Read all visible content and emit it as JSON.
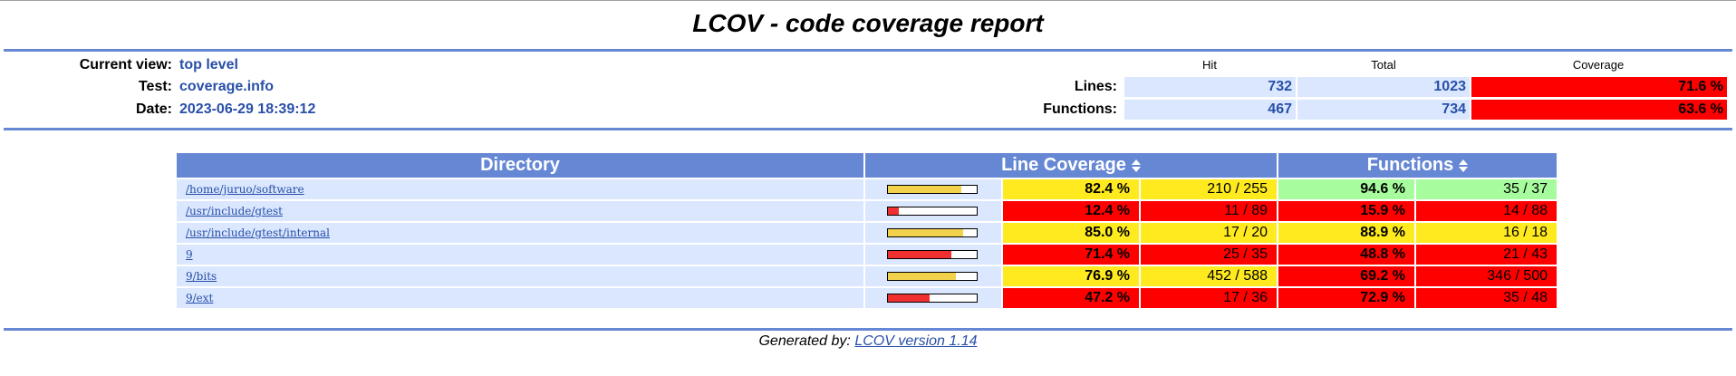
{
  "title": "LCOV - code coverage report",
  "header": {
    "current_view_label": "Current view:",
    "current_view_value": "top level",
    "test_label": "Test:",
    "test_value": "coverage.info",
    "date_label": "Date:",
    "date_value": "2023-06-29 18:39:12"
  },
  "summary": {
    "col_hit": "Hit",
    "col_total": "Total",
    "col_coverage": "Coverage",
    "lines_label": "Lines:",
    "lines_hit": "732",
    "lines_total": "1023",
    "lines_coverage": "71.6 %",
    "functions_label": "Functions:",
    "functions_hit": "467",
    "functions_total": "734",
    "functions_coverage": "63.6 %"
  },
  "table": {
    "headers": {
      "directory": "Directory",
      "line_coverage": "Line Coverage",
      "functions": "Functions"
    },
    "rows": [
      {
        "directory": "/home/juruo/software",
        "line_pct": "82.4 %",
        "line_frac": "210 / 255",
        "line_ratio": 0.824,
        "line_level": "medium",
        "fn_pct": "94.6 %",
        "fn_frac": "35 / 37",
        "fn_level": "high"
      },
      {
        "directory": "/usr/include/gtest",
        "line_pct": "12.4 %",
        "line_frac": "11 / 89",
        "line_ratio": 0.124,
        "line_level": "low",
        "fn_pct": "15.9 %",
        "fn_frac": "14 / 88",
        "fn_level": "low"
      },
      {
        "directory": "/usr/include/gtest/internal",
        "line_pct": "85.0 %",
        "line_frac": "17 / 20",
        "line_ratio": 0.85,
        "line_level": "medium",
        "fn_pct": "88.9 %",
        "fn_frac": "16 / 18",
        "fn_level": "medium"
      },
      {
        "directory": "9",
        "line_pct": "71.4 %",
        "line_frac": "25 / 35",
        "line_ratio": 0.714,
        "line_level": "low",
        "fn_pct": "48.8 %",
        "fn_frac": "21 / 43",
        "fn_level": "low"
      },
      {
        "directory": "9/bits",
        "line_pct": "76.9 %",
        "line_frac": "452 / 588",
        "line_ratio": 0.769,
        "line_level": "medium",
        "fn_pct": "69.2 %",
        "fn_frac": "346 / 500",
        "fn_level": "low"
      },
      {
        "directory": "9/ext",
        "line_pct": "47.2 %",
        "line_frac": "17 / 36",
        "line_ratio": 0.472,
        "line_level": "low",
        "fn_pct": "72.9 %",
        "fn_frac": "35 / 48",
        "fn_level": "low"
      }
    ]
  },
  "colors": {
    "high": "#a7fc9d",
    "medium": "#ffea20",
    "low": "#ff0000",
    "bar_medium": "#f2d24a",
    "bar_low": "#f03030",
    "header_blue": "#6688d4",
    "cell_blue": "#dae7fe"
  },
  "footer": {
    "prefix": "Generated by:",
    "link": "LCOV version 1.14"
  }
}
